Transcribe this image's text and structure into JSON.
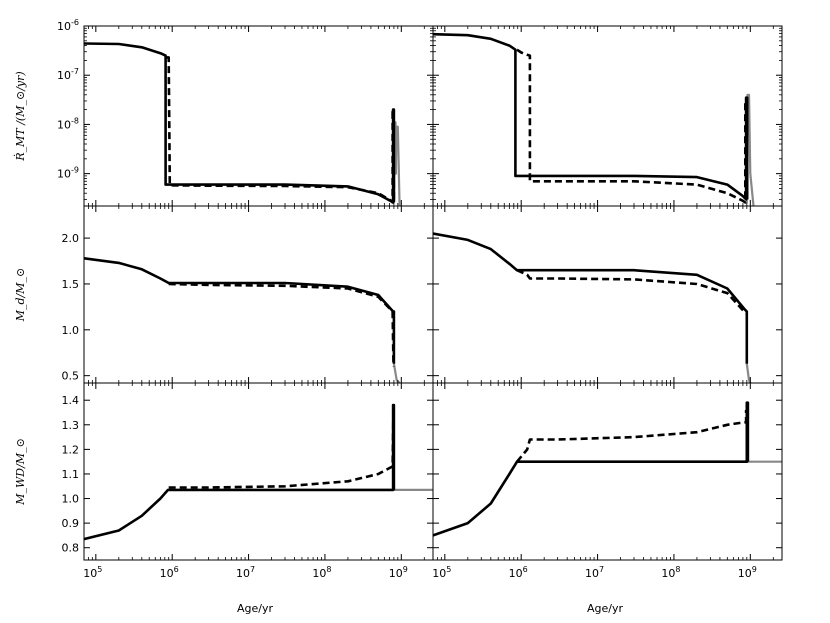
{
  "figure": {
    "xlabel": "Age/yr",
    "x_scale": "log",
    "xlim": [
      70000,
      2600000000
    ],
    "x_ticks": [
      {
        "value": 100000,
        "label": "10",
        "exp": "5"
      },
      {
        "value": 1000000,
        "label": "10",
        "exp": "6"
      },
      {
        "value": 10000000,
        "label": "10",
        "exp": "7"
      },
      {
        "value": 100000000,
        "label": "10",
        "exp": "8"
      },
      {
        "value": 1000000000,
        "label": "10",
        "exp": "9"
      }
    ]
  },
  "rows": [
    {
      "key": "rmt",
      "ylabel": "Ṙ_MT /(M_⊙/yr)",
      "y_scale": "log",
      "ylim": [
        2.2e-10,
        1e-06
      ],
      "y_ticks": [
        {
          "value": 1e-06,
          "label": "10",
          "exp": "-6"
        },
        {
          "value": 1e-07,
          "label": "10",
          "exp": "-7"
        },
        {
          "value": 1e-08,
          "label": "10",
          "exp": "-8"
        },
        {
          "value": 1e-09,
          "label": "10",
          "exp": "-9"
        }
      ]
    },
    {
      "key": "md",
      "ylabel": "M_d/M_⊙",
      "y_scale": "linear",
      "ylim": [
        0.42,
        2.35
      ],
      "y_ticks": [
        {
          "value": 0.5,
          "label": "0.5"
        },
        {
          "value": 1.0,
          "label": "1.0"
        },
        {
          "value": 1.5,
          "label": "1.5"
        },
        {
          "value": 2.0,
          "label": "2.0"
        }
      ]
    },
    {
      "key": "mwd",
      "ylabel": "M_WD/M_⊙",
      "y_scale": "linear",
      "ylim": [
        0.75,
        1.47
      ],
      "y_ticks": [
        {
          "value": 0.8,
          "label": "0.8"
        },
        {
          "value": 0.9,
          "label": "0.9"
        },
        {
          "value": 1.0,
          "label": "1.0"
        },
        {
          "value": 1.1,
          "label": "1.1"
        },
        {
          "value": 1.2,
          "label": "1.2"
        },
        {
          "value": 1.3,
          "label": "1.3"
        },
        {
          "value": 1.4,
          "label": "1.4"
        }
      ]
    }
  ],
  "colors": {
    "solid": "#000000",
    "dashed": "#000000",
    "gray": "#888888"
  },
  "chart_data": [
    {
      "type": "line",
      "row": 0,
      "col": 0,
      "series": [
        {
          "style": "solid",
          "x": [
            70000,
            200000,
            400000,
            700000,
            820000,
            820000,
            900000,
            3000000,
            30000000,
            200000000,
            500000000,
            750000000,
            780000000,
            780000000,
            800000000,
            800000000
          ],
          "y": [
            4.4e-07,
            4.3e-07,
            3.7e-07,
            2.8e-07,
            2.5e-07,
            6e-10,
            6e-10,
            6e-10,
            6e-10,
            5.5e-10,
            3.8e-10,
            2.7e-10,
            2.6e-10,
            2e-08,
            2e-08,
            2.6e-10
          ]
        },
        {
          "style": "dashed",
          "x": [
            840000,
            860000,
            900000,
            930000,
            3000000,
            30000000,
            200000000,
            500000000,
            740000000,
            770000000,
            770000000,
            790000000,
            800000000
          ],
          "y": [
            2.3e-07,
            2.3e-07,
            2.3e-07,
            5.8e-10,
            5.7e-10,
            5.6e-10,
            5.3e-10,
            4e-10,
            2.8e-10,
            2.6e-10,
            1.8e-08,
            1.8e-08,
            2.8e-10
          ]
        },
        {
          "style": "gray",
          "x": [
            800000000,
            820000000,
            840000000,
            850000000,
            860000000,
            900000000,
            950000000
          ],
          "y": [
            2.6e-10,
            1.1e-08,
            1.1e-08,
            1e-09,
            9e-09,
            9e-09,
            2.2e-10
          ]
        }
      ]
    },
    {
      "type": "line",
      "row": 0,
      "col": 1,
      "series": [
        {
          "style": "solid",
          "x": [
            70000,
            200000,
            400000,
            700000,
            840000,
            840000,
            1000000,
            3000000,
            30000000,
            200000000,
            500000000,
            800000000,
            880000000,
            880000000,
            910000000,
            910000000
          ],
          "y": [
            6.8e-07,
            6.5e-07,
            5.5e-07,
            4e-07,
            3.3e-07,
            9e-10,
            9e-10,
            9e-10,
            9e-10,
            8.5e-10,
            6e-10,
            3.5e-10,
            3e-10,
            3.5e-08,
            3.5e-08,
            3e-10
          ]
        },
        {
          "style": "dashed",
          "x": [
            880000,
            1000000,
            1200000,
            1300000,
            1300000,
            1500000,
            3000000,
            30000000,
            200000000,
            500000000,
            800000000,
            860000000,
            860000000,
            890000000
          ],
          "y": [
            3.3e-07,
            2.9e-07,
            2.6e-07,
            2.5e-07,
            7e-10,
            7e-10,
            7e-10,
            7e-10,
            6e-10,
            4e-10,
            2.8e-10,
            2.6e-10,
            2.8e-08,
            2.8e-08
          ]
        },
        {
          "style": "gray",
          "x": [
            900000000,
            920000000,
            960000000,
            1000000000,
            1100000000
          ],
          "y": [
            2.5e-10,
            4e-08,
            4e-08,
            1e-09,
            2.2e-10
          ]
        }
      ]
    },
    {
      "type": "line",
      "row": 1,
      "col": 0,
      "series": [
        {
          "style": "solid",
          "x": [
            70000,
            200000,
            400000,
            700000,
            900000,
            3000000,
            30000000,
            200000000,
            500000000,
            780000000,
            800000000,
            800000000
          ],
          "y": [
            1.78,
            1.73,
            1.66,
            1.56,
            1.51,
            1.51,
            1.51,
            1.47,
            1.38,
            1.2,
            1.2,
            0.63
          ]
        },
        {
          "style": "dashed",
          "x": [
            900000,
            3000000,
            30000000,
            200000000,
            500000000,
            770000000,
            790000000
          ],
          "y": [
            1.5,
            1.49,
            1.48,
            1.45,
            1.36,
            1.2,
            0.6
          ]
        },
        {
          "style": "gray",
          "x": [
            800000000,
            870000000,
            950000000
          ],
          "y": [
            0.63,
            0.45,
            0.42
          ]
        }
      ]
    },
    {
      "type": "line",
      "row": 1,
      "col": 1,
      "series": [
        {
          "style": "solid",
          "x": [
            70000,
            200000,
            400000,
            700000,
            880000,
            3000000,
            30000000,
            200000000,
            500000000,
            850000000,
            900000000,
            900000000
          ],
          "y": [
            2.05,
            1.98,
            1.88,
            1.72,
            1.65,
            1.65,
            1.65,
            1.6,
            1.45,
            1.22,
            1.2,
            0.63
          ]
        },
        {
          "style": "dashed",
          "x": [
            880000,
            1200000,
            1300000,
            3000000,
            30000000,
            200000000,
            500000000,
            830000000,
            880000000
          ],
          "y": [
            1.65,
            1.6,
            1.56,
            1.56,
            1.55,
            1.5,
            1.4,
            1.2,
            1.18
          ]
        },
        {
          "style": "gray",
          "x": [
            900000000,
            960000000,
            1000000000
          ],
          "y": [
            0.63,
            0.45,
            0.42
          ]
        }
      ]
    },
    {
      "type": "line",
      "row": 2,
      "col": 0,
      "series": [
        {
          "style": "solid",
          "x": [
            70000,
            200000,
            400000,
            700000,
            880000,
            3000000,
            30000000,
            200000000,
            500000000,
            770000000,
            780000000,
            780000000,
            800000000,
            800000000
          ],
          "y": [
            0.835,
            0.87,
            0.93,
            1.0,
            1.035,
            1.035,
            1.035,
            1.035,
            1.035,
            1.035,
            1.035,
            1.38,
            1.38,
            1.035
          ]
        },
        {
          "style": "dashed",
          "x": [
            900000,
            3000000,
            30000000,
            200000000,
            500000000,
            760000000,
            770000000,
            790000000
          ],
          "y": [
            1.045,
            1.045,
            1.05,
            1.07,
            1.1,
            1.13,
            1.13,
            1.38
          ]
        },
        {
          "style": "gray",
          "x": [
            800000000,
            2600000000
          ],
          "y": [
            1.035,
            1.035
          ]
        }
      ]
    },
    {
      "type": "line",
      "row": 2,
      "col": 1,
      "series": [
        {
          "style": "solid",
          "x": [
            70000,
            200000,
            400000,
            700000,
            880000,
            3000000,
            30000000,
            200000000,
            500000000,
            900000000,
            900000000,
            930000000,
            930000000
          ],
          "y": [
            0.85,
            0.9,
            0.98,
            1.1,
            1.15,
            1.15,
            1.15,
            1.15,
            1.15,
            1.15,
            1.39,
            1.39,
            1.15
          ]
        },
        {
          "style": "dashed",
          "x": [
            880000,
            1200000,
            1300000,
            3000000,
            30000000,
            200000000,
            500000000,
            830000000,
            880000000,
            880000000
          ],
          "y": [
            1.15,
            1.2,
            1.24,
            1.24,
            1.25,
            1.27,
            1.3,
            1.31,
            1.31,
            1.36
          ]
        },
        {
          "style": "gray",
          "x": [
            930000000,
            2600000000
          ],
          "y": [
            1.15,
            1.15
          ]
        }
      ]
    }
  ]
}
